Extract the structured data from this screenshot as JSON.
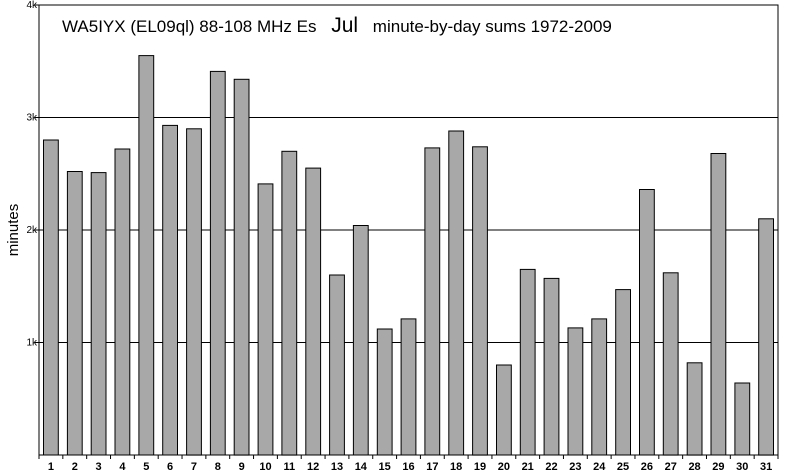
{
  "chart_data": {
    "type": "bar",
    "title": "WA5IYX (EL09ql) 88-108 MHz Es",
    "title_month": "Jul",
    "subtitle": "minute-by-day sums 1972-2009",
    "xlabel": "",
    "ylabel": "minutes",
    "ylim": [
      0,
      4000
    ],
    "yticks": [
      {
        "value": 1000,
        "label": "1k"
      },
      {
        "value": 2000,
        "label": "2k"
      },
      {
        "value": 3000,
        "label": "3k"
      },
      {
        "value": 4000,
        "label": "4k"
      }
    ],
    "grid": true,
    "categories": [
      "1",
      "2",
      "3",
      "4",
      "5",
      "6",
      "7",
      "8",
      "9",
      "10",
      "11",
      "12",
      "13",
      "14",
      "15",
      "16",
      "17",
      "18",
      "19",
      "20",
      "21",
      "22",
      "23",
      "24",
      "25",
      "26",
      "27",
      "28",
      "29",
      "30",
      "31"
    ],
    "values": [
      2800,
      2520,
      2510,
      2720,
      3550,
      2930,
      2900,
      3410,
      3340,
      2410,
      2700,
      2550,
      1600,
      2040,
      1120,
      1210,
      2730,
      2880,
      2740,
      800,
      1650,
      1570,
      1130,
      1210,
      1470,
      2360,
      1620,
      820,
      2680,
      640,
      2100
    ],
    "colors": {
      "bar": "#a8a8a8",
      "border": "#000000",
      "background": "#ffffff"
    }
  }
}
